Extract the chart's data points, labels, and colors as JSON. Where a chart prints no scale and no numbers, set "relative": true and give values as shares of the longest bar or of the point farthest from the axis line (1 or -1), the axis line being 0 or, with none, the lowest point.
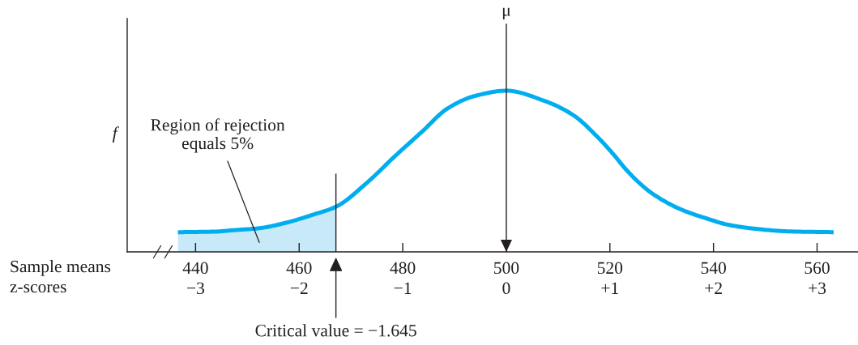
{
  "chart_data": {
    "type": "line",
    "relative": true,
    "xlabel": "Sample means",
    "x2label": "z-scores",
    "ylabel": "f",
    "xlim": [
      426.8,
      567.9
    ],
    "xticks": [
      440,
      460,
      480,
      500,
      520,
      540,
      560
    ],
    "x2lim": [
      -3.66,
      3.395
    ],
    "x2ticks": [
      {
        "value": -3,
        "label": "−3"
      },
      {
        "value": -2,
        "label": "−2"
      },
      {
        "value": -1,
        "label": "−1"
      },
      0,
      {
        "value": 1,
        "label": "+1"
      },
      {
        "value": 2,
        "label": "+2"
      },
      {
        "value": 3,
        "label": "+3"
      }
    ],
    "series": [
      {
        "type": "area",
        "color": "#c7e9f8",
        "x": [
          436.6,
          444,
          447.1,
          452.3,
          457.5,
          462.7,
          467.1
        ],
        "values": [
          0.122,
          0.126,
          0.134,
          0.147,
          0.181,
          0.231,
          0.28
        ]
      },
      {
        "color": "#00aeef",
        "x": [
          436.6,
          444,
          447.1,
          452.3,
          457.5,
          462.7,
          467.1,
          473.2,
          478.4,
          483.6,
          488.8,
          494,
          500,
          507.5,
          512.8,
          518,
          520.6,
          523.2,
          525.8,
          528.4,
          533.6,
          538.8,
          543,
          549.3,
          554.5,
          563.2
        ],
        "values": [
          0.122,
          0.126,
          0.134,
          0.147,
          0.181,
          0.231,
          0.28,
          0.432,
          0.591,
          0.742,
          0.893,
          0.968,
          1,
          0.935,
          0.851,
          0.7,
          0.608,
          0.508,
          0.424,
          0.357,
          0.265,
          0.206,
          0.167,
          0.139,
          0.127,
          0.122
        ]
      }
    ],
    "ref_lines": [
      {
        "axis": "x",
        "value": 500,
        "label": "μ"
      },
      {
        "axis": "x2",
        "value": -1.645,
        "label": "Critical value = −1.645"
      }
    ],
    "annotations": [
      "Region of rejection\nequals 5%"
    ]
  }
}
